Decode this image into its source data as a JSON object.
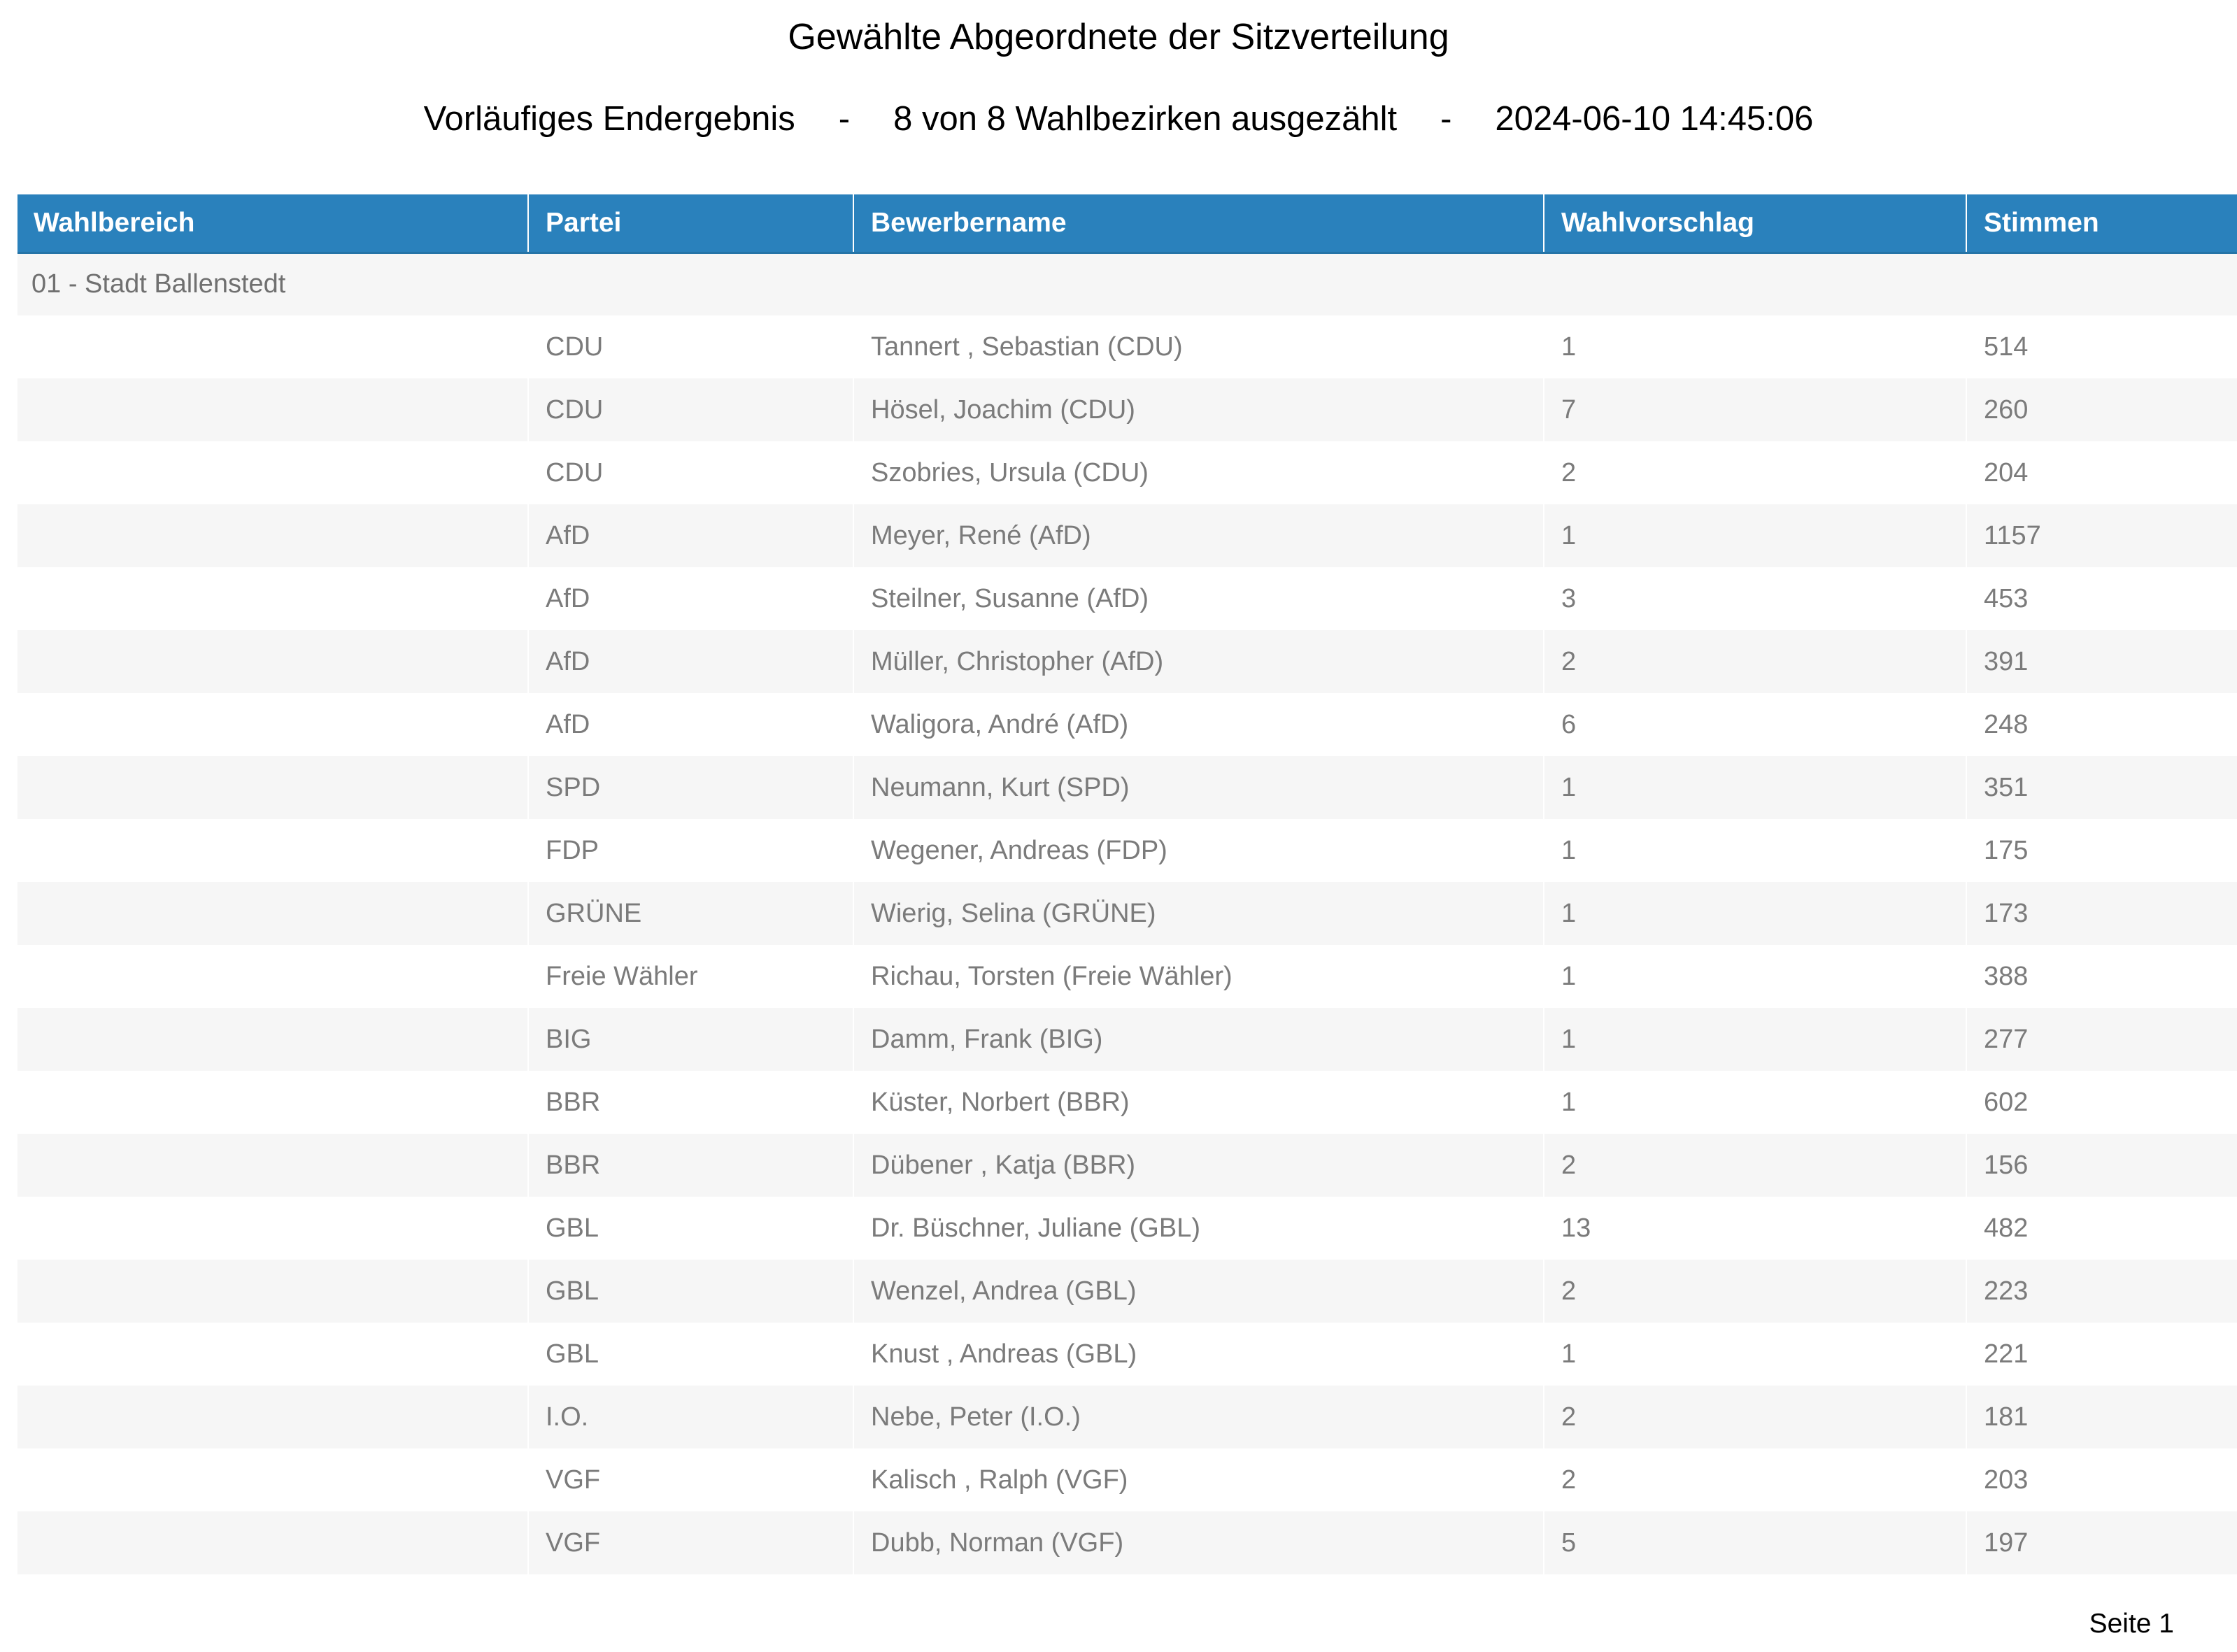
{
  "page": {
    "title": "Gewählte Abgeordnete der Sitzverteilung",
    "subtitle": {
      "status": "Vorläufiges Endergebnis",
      "separator": "-",
      "districts_counted": "8 von 8 Wahlbezirken ausgezählt",
      "timestamp": "2024-06-10 14:45:06"
    },
    "footer": {
      "page_label": "Seite 1"
    }
  },
  "table": {
    "columns": [
      "Wahlbereich",
      "Partei",
      "Bewerbername",
      "Wahlvorschlag",
      "Stimmen"
    ],
    "group": "01 - Stadt Ballenstedt",
    "rows": [
      {
        "partei": "CDU",
        "bewerbername": "Tannert , Sebastian (CDU)",
        "wahlvorschlag": "1",
        "stimmen": "514"
      },
      {
        "partei": "CDU",
        "bewerbername": "Hösel, Joachim (CDU)",
        "wahlvorschlag": "7",
        "stimmen": "260"
      },
      {
        "partei": "CDU",
        "bewerbername": "Szobries, Ursula (CDU)",
        "wahlvorschlag": "2",
        "stimmen": "204"
      },
      {
        "partei": "AfD",
        "bewerbername": "Meyer, René (AfD)",
        "wahlvorschlag": "1",
        "stimmen": "1157"
      },
      {
        "partei": "AfD",
        "bewerbername": "Steilner, Susanne (AfD)",
        "wahlvorschlag": "3",
        "stimmen": "453"
      },
      {
        "partei": "AfD",
        "bewerbername": "Müller, Christopher (AfD)",
        "wahlvorschlag": "2",
        "stimmen": "391"
      },
      {
        "partei": "AfD",
        "bewerbername": "Waligora, André (AfD)",
        "wahlvorschlag": "6",
        "stimmen": "248"
      },
      {
        "partei": "SPD",
        "bewerbername": "Neumann, Kurt (SPD)",
        "wahlvorschlag": "1",
        "stimmen": "351"
      },
      {
        "partei": "FDP",
        "bewerbername": "Wegener, Andreas (FDP)",
        "wahlvorschlag": "1",
        "stimmen": "175"
      },
      {
        "partei": "GRÜNE",
        "bewerbername": "Wierig, Selina (GRÜNE)",
        "wahlvorschlag": "1",
        "stimmen": "173"
      },
      {
        "partei": "Freie Wähler",
        "bewerbername": "Richau, Torsten (Freie Wähler)",
        "wahlvorschlag": "1",
        "stimmen": "388"
      },
      {
        "partei": "BIG",
        "bewerbername": "Damm, Frank (BIG)",
        "wahlvorschlag": "1",
        "stimmen": "277"
      },
      {
        "partei": "BBR",
        "bewerbername": "Küster, Norbert (BBR)",
        "wahlvorschlag": "1",
        "stimmen": "602"
      },
      {
        "partei": "BBR",
        "bewerbername": "Dübener , Katja (BBR)",
        "wahlvorschlag": "2",
        "stimmen": "156"
      },
      {
        "partei": "GBL",
        "bewerbername": "Dr. Büschner, Juliane (GBL)",
        "wahlvorschlag": "13",
        "stimmen": "482"
      },
      {
        "partei": "GBL",
        "bewerbername": "Wenzel, Andrea (GBL)",
        "wahlvorschlag": "2",
        "stimmen": "223"
      },
      {
        "partei": "GBL",
        "bewerbername": "Knust , Andreas (GBL)",
        "wahlvorschlag": "1",
        "stimmen": "221"
      },
      {
        "partei": "I.O.",
        "bewerbername": "Nebe, Peter (I.O.)",
        "wahlvorschlag": "2",
        "stimmen": "181"
      },
      {
        "partei": "VGF",
        "bewerbername": "Kalisch , Ralph (VGF)",
        "wahlvorschlag": "2",
        "stimmen": "203"
      },
      {
        "partei": "VGF",
        "bewerbername": "Dubb, Norman (VGF)",
        "wahlvorschlag": "5",
        "stimmen": "197"
      }
    ]
  },
  "colors": {
    "header_bg": "#2A81BC",
    "header_border": "#2574A7",
    "row_alt_bg": "#F6F6F6",
    "body_text": "#7B7B7B",
    "header_text": "#FFFFFF"
  }
}
